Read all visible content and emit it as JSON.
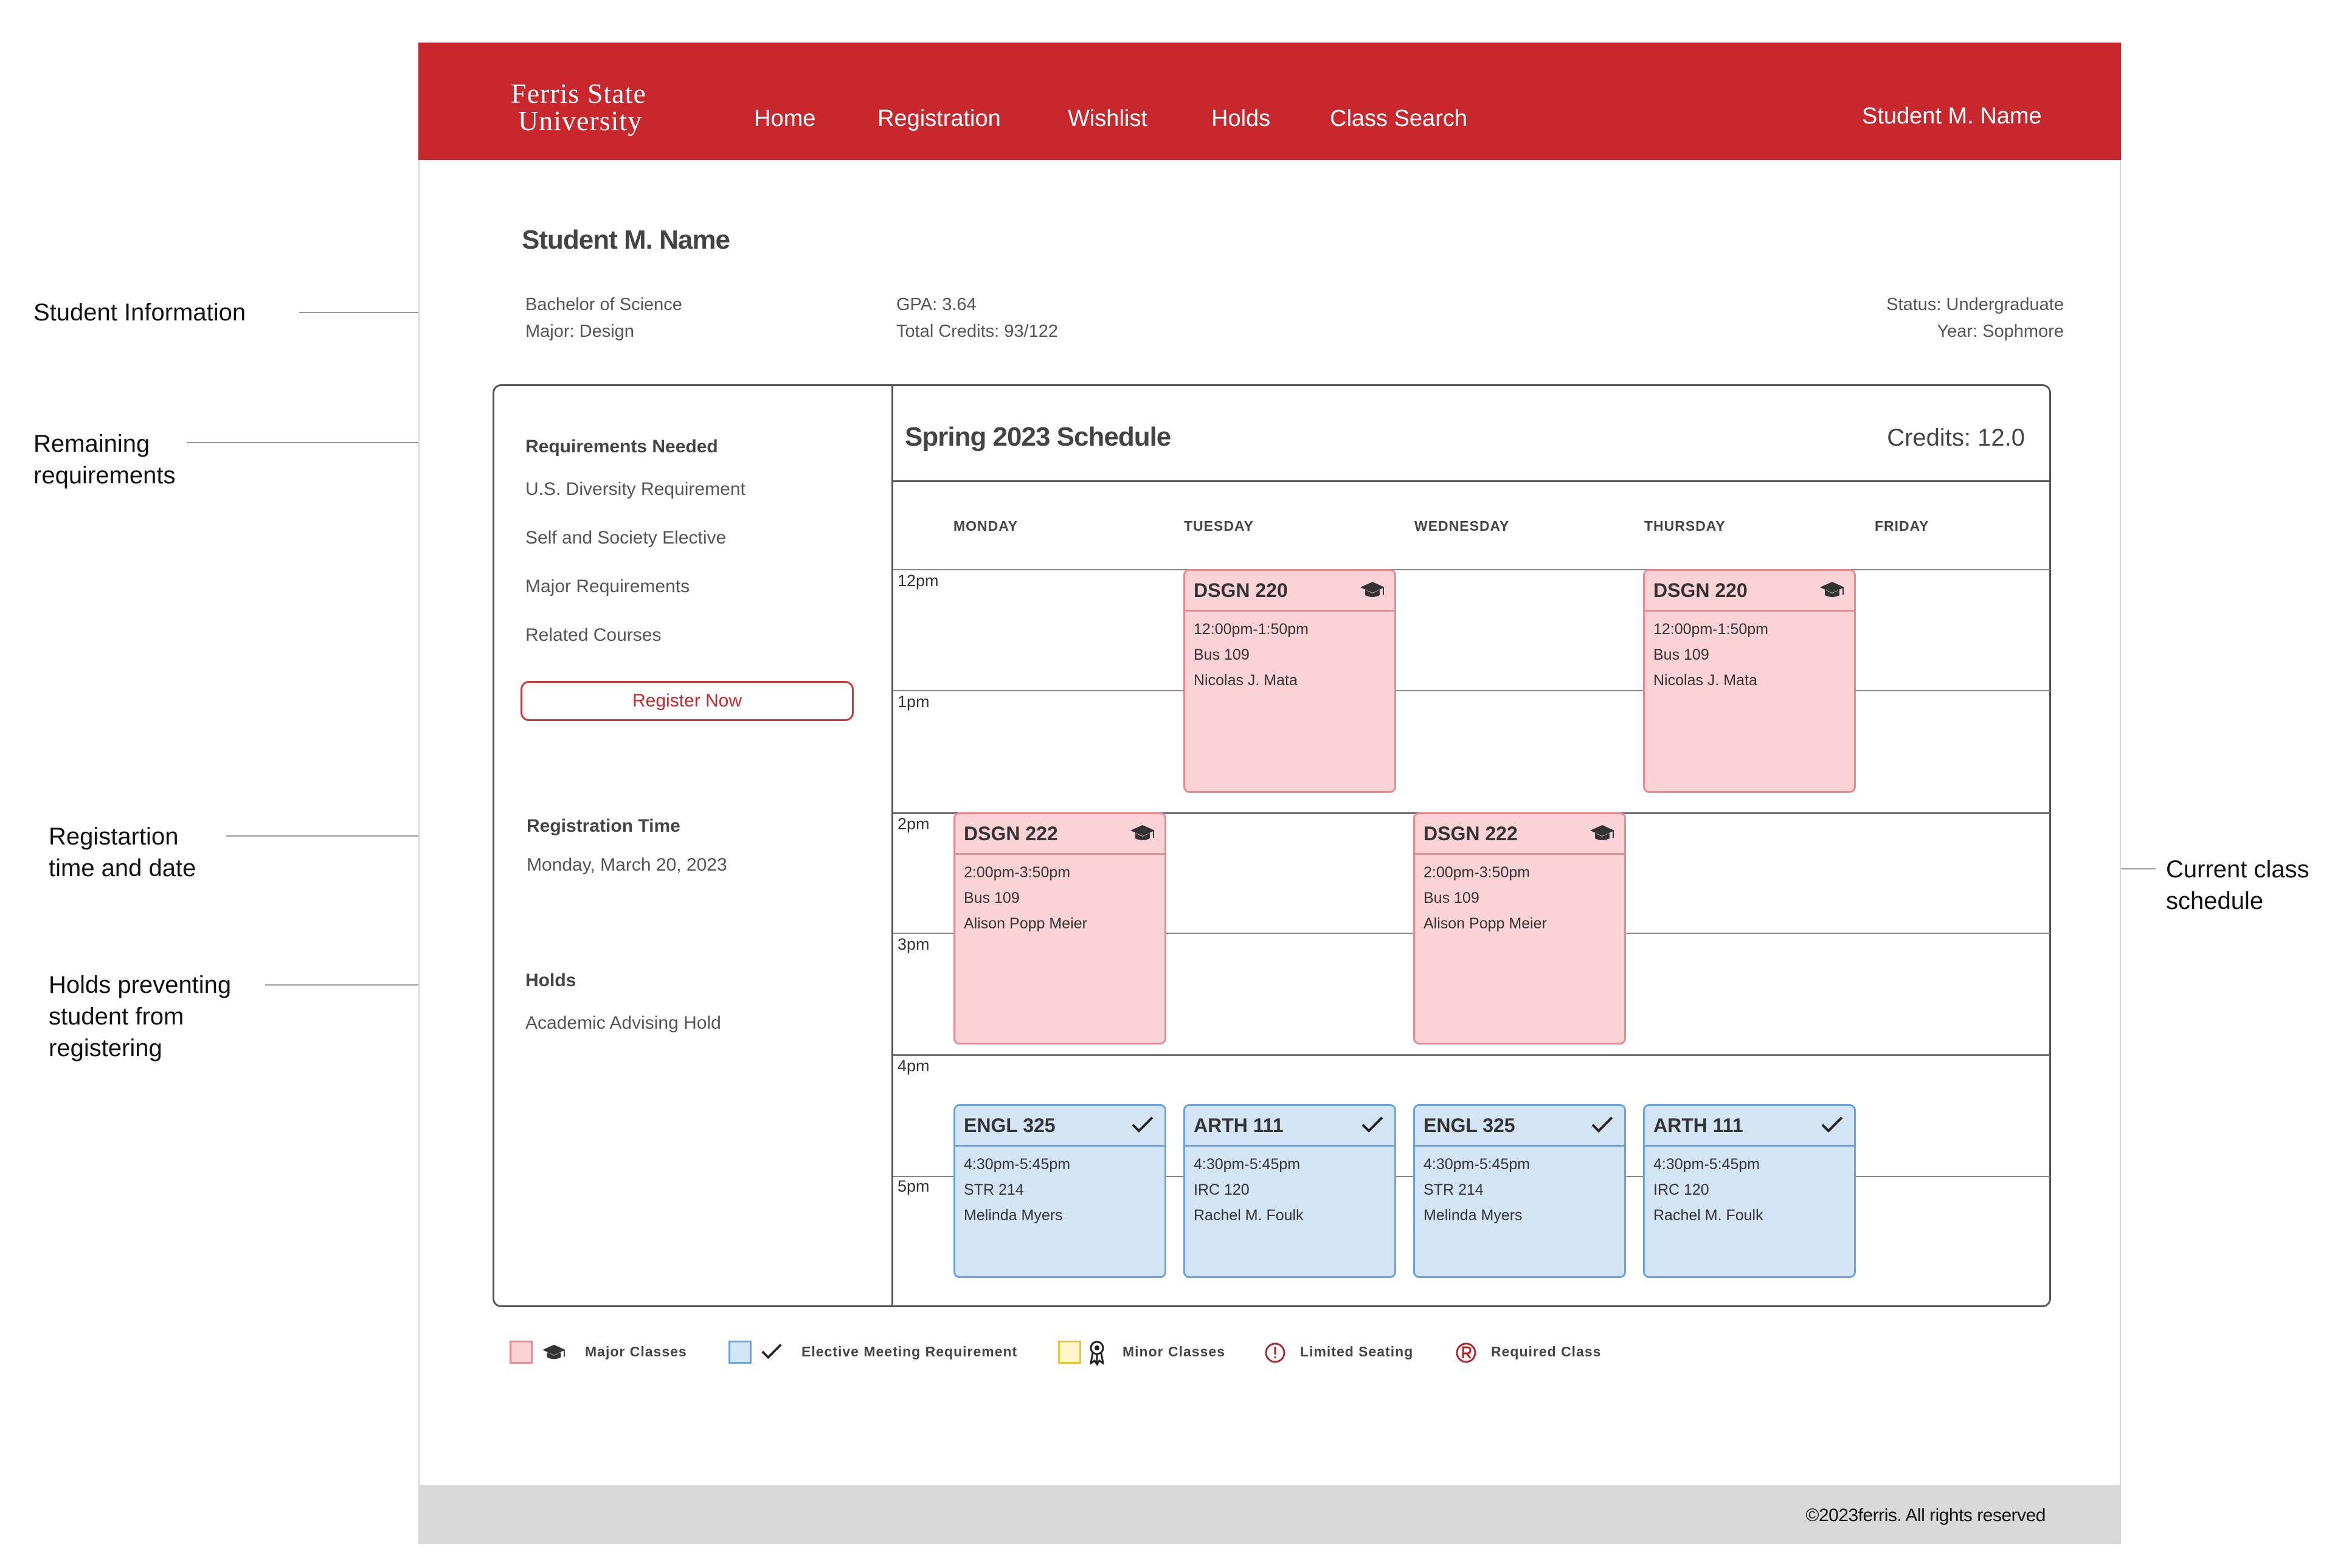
{
  "annotations": {
    "student_info": "Student Information",
    "remaining_1": "Remaining",
    "remaining_2": "requirements",
    "reg_time_1": "Registartion",
    "reg_time_2": "time and date",
    "holds_1": "Holds preventing",
    "holds_2": "student from",
    "holds_3": "registering",
    "current_1": "Current class",
    "current_2": "schedule"
  },
  "header": {
    "logo_line1": "Ferris State",
    "logo_line2": "University",
    "nav": [
      "Home",
      "Registration",
      "Wishlist",
      "Holds",
      "Class Search"
    ],
    "user": "Student M. Name"
  },
  "student": {
    "name": "Student M. Name",
    "degree": "Bachelor of Science",
    "major": "Major: Design",
    "gpa": "GPA: 3.64",
    "credits": "Total Credits: 93/122",
    "status": "Status: Undergraduate",
    "year": "Year: Sophmore"
  },
  "sidebar": {
    "requirements_heading": "Requirements Needed",
    "requirements": [
      "U.S. Diversity Requirement",
      "Self and Society Elective",
      "Major Requirements",
      "Related Courses"
    ],
    "register_label": "Register Now",
    "reg_time_heading": "Registration Time",
    "reg_time_value": "Monday, March 20, 2023",
    "holds_heading": "Holds",
    "holds_value": "Academic Advising Hold"
  },
  "schedule": {
    "title": "Spring 2023 Schedule",
    "credits": "Credits: 12.0",
    "days": [
      "MONDAY",
      "TUESDAY",
      "WEDNESDAY",
      "THURSDAY",
      "FRIDAY"
    ],
    "times": [
      "12pm",
      "1pm",
      "2pm",
      "3pm",
      "4pm",
      "5pm"
    ],
    "classes": [
      {
        "code": "DSGN 220",
        "time": "12:00pm-1:50pm",
        "room": "Bus 109",
        "instructor": "Nicolas J. Mata",
        "kind": "major"
      },
      {
        "code": "DSGN 220",
        "time": "12:00pm-1:50pm",
        "room": "Bus 109",
        "instructor": "Nicolas J. Mata",
        "kind": "major"
      },
      {
        "code": "DSGN 222",
        "time": "2:00pm-3:50pm",
        "room": "Bus 109",
        "instructor": "Alison Popp Meier",
        "kind": "major"
      },
      {
        "code": "DSGN 222",
        "time": "2:00pm-3:50pm",
        "room": "Bus 109",
        "instructor": "Alison Popp Meier",
        "kind": "major"
      },
      {
        "code": "ENGL 325",
        "time": "4:30pm-5:45pm",
        "room": "STR 214",
        "instructor": "Melinda Myers",
        "kind": "elective"
      },
      {
        "code": "ARTH 111",
        "time": "4:30pm-5:45pm",
        "room": "IRC 120",
        "instructor": "Rachel M. Foulk",
        "kind": "elective"
      },
      {
        "code": "ENGL 325",
        "time": "4:30pm-5:45pm",
        "room": "STR 214",
        "instructor": "Melinda Myers",
        "kind": "elective"
      },
      {
        "code": "ARTH 111",
        "time": "4:30pm-5:45pm",
        "room": "IRC 120",
        "instructor": "Rachel M. Foulk",
        "kind": "elective"
      }
    ]
  },
  "legend": {
    "major": "Major Classes",
    "elective": "Elective Meeting Requirement",
    "minor": "Minor Classes",
    "limited": "Limited Seating",
    "required": "Required Class"
  },
  "colors": {
    "brand": "#c8272d",
    "major_fill": "#fbd3d7",
    "major_border": "#ee8890",
    "elective_fill": "#d3e4f5",
    "elective_border": "#6aa3de",
    "minor_fill": "#fff6cc",
    "minor_border": "#e8c437"
  },
  "footer": {
    "copyright": "©2023ferris. All rights reserved"
  }
}
